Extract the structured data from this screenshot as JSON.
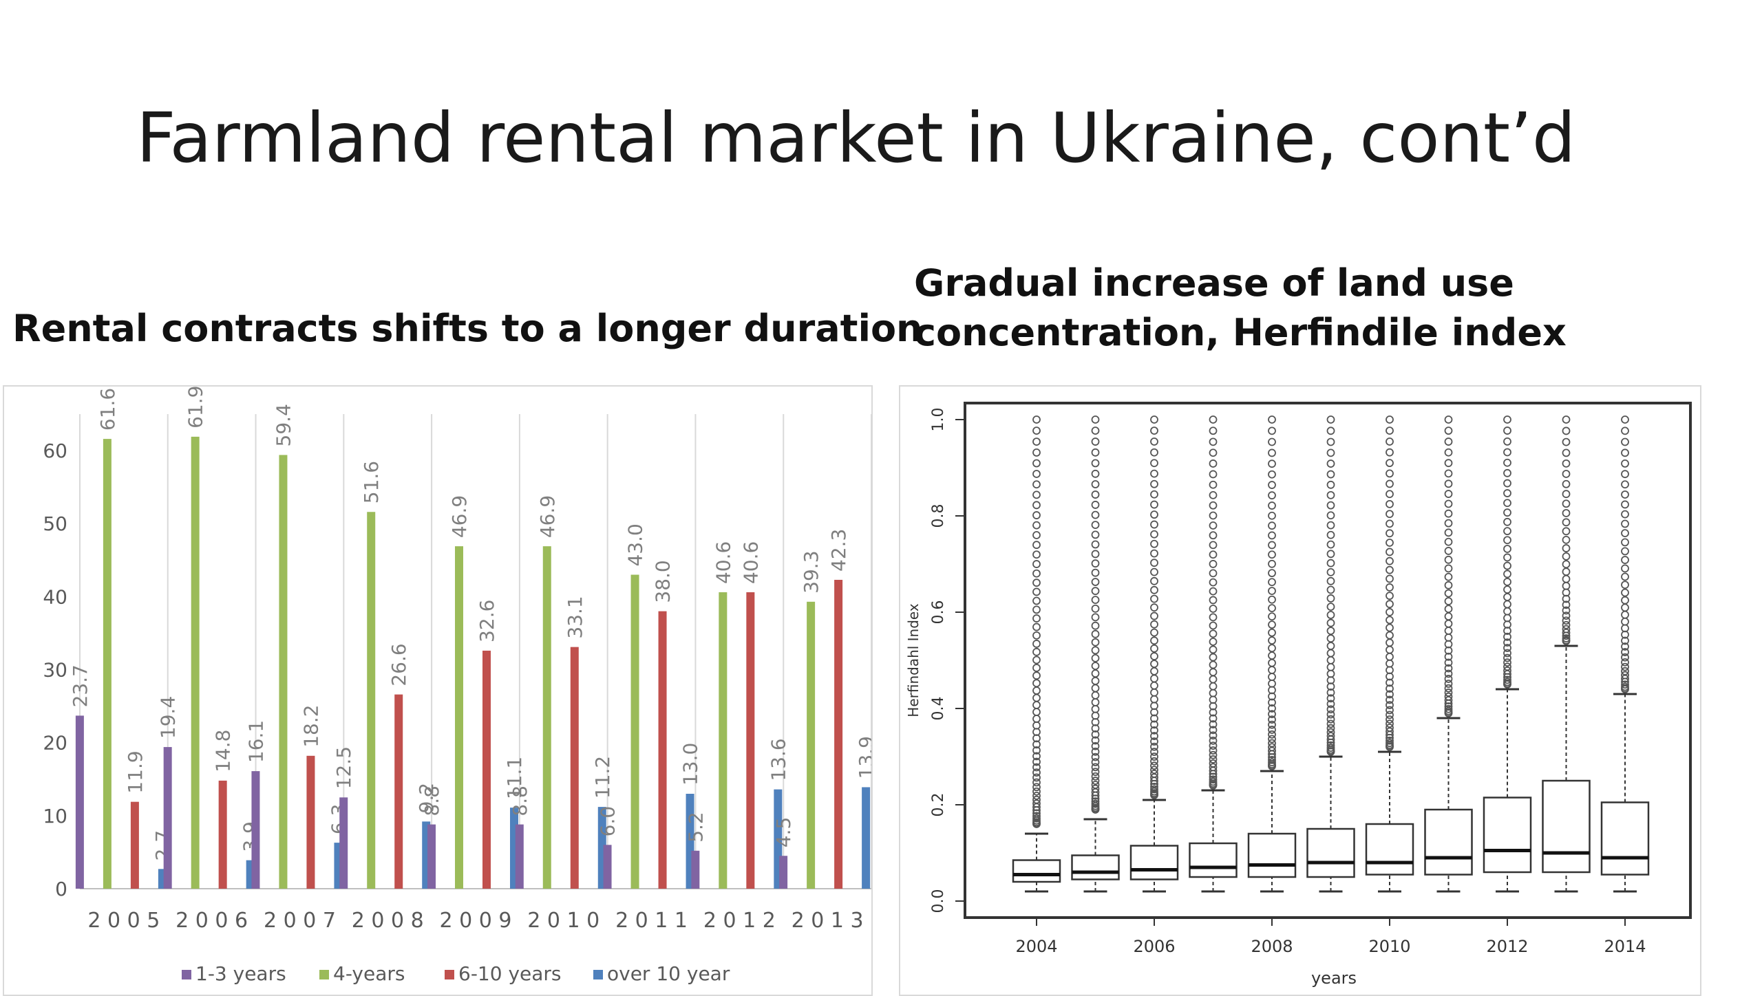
{
  "slide": {
    "title": "Farmland rental market in Ukraine, cont’d",
    "left_subtitle": "Rental contracts shifts to a longer duration",
    "right_subtitle": "Gradual increase of land use concentration, Herfindile index"
  },
  "colors": {
    "one_to_three": "#8064a2",
    "four_years": "#9bbb59",
    "six_to_ten": "#c0504d",
    "over_ten": "#4f81bd"
  },
  "chart_data": [
    {
      "type": "bar",
      "title": "",
      "xlabel": "",
      "ylabel": "",
      "ylim": [
        0,
        65
      ],
      "yticks": [
        0,
        10,
        20,
        30,
        40,
        50,
        60
      ],
      "categories": [
        "2005",
        "2006",
        "2007",
        "2008",
        "2009",
        "2010",
        "2011",
        "2012",
        "2013"
      ],
      "category_labels": [
        "2 0 0 5",
        "2 0 0 6",
        "2 0 0 7",
        "2 0 0 8",
        "2 0 0 9",
        "2 0 1 0",
        "2 0 1 1",
        "2 0 1 2",
        "2 0 1 3"
      ],
      "legend_position": "bottom",
      "grid": "vertical",
      "series": [
        {
          "name": "1-3 years",
          "color": "#8064a2",
          "values": [
            23.7,
            19.4,
            16.1,
            12.5,
            8.8,
            8.8,
            6.0,
            5.2,
            4.5
          ],
          "labels": [
            "23.7",
            "19.4",
            "16.1",
            "12.5",
            "8.8",
            "8.8",
            "6.0",
            "5.2",
            "4.5"
          ]
        },
        {
          "name": "4-years",
          "color": "#9bbb59",
          "values": [
            61.6,
            61.9,
            59.4,
            51.6,
            46.9,
            46.9,
            43.0,
            40.6,
            39.3
          ],
          "labels": [
            "61.6",
            "61.9",
            "59.4",
            "51.6",
            "46.9",
            "46.9",
            "43.0",
            "40.6",
            "39.3"
          ]
        },
        {
          "name": "6-10 years",
          "color": "#c0504d",
          "values": [
            11.9,
            14.8,
            18.2,
            26.6,
            32.6,
            33.1,
            38.0,
            40.6,
            42.3
          ],
          "labels": [
            "11.9",
            "14.8",
            "18.2",
            "26.6",
            "32.6",
            "33.1",
            "38.0",
            "40.6",
            "42.3"
          ]
        },
        {
          "name": "over 10 year",
          "color": "#4f81bd",
          "values": [
            2.7,
            3.9,
            6.3,
            9.2,
            11.1,
            11.2,
            13.0,
            13.6,
            13.9
          ],
          "labels": [
            "2.7",
            "3.9",
            "6.3",
            "9.2",
            "11.1",
            "11.2",
            "13.0",
            "13.6",
            "13.9"
          ]
        }
      ]
    },
    {
      "type": "boxplot",
      "title": "",
      "xlabel": "years",
      "ylabel": "Herfindahl Index",
      "ylim": [
        0,
        1.0
      ],
      "yticks": [
        "0.0",
        "0.2",
        "0.4",
        "0.6",
        "0.8",
        "1.0"
      ],
      "xticks": [
        "2004",
        "2006",
        "2008",
        "2010",
        "2012",
        "2014"
      ],
      "categories": [
        "2004",
        "2005",
        "2006",
        "2007",
        "2008",
        "2009",
        "2010",
        "2011",
        "2012",
        "2013",
        "2014"
      ],
      "boxes": [
        {
          "year": "2004",
          "whisker_low": 0.02,
          "q1": 0.04,
          "median": 0.055,
          "q3": 0.085,
          "whisker_high": 0.14,
          "outlier_min": 0.16
        },
        {
          "year": "2005",
          "whisker_low": 0.02,
          "q1": 0.045,
          "median": 0.06,
          "q3": 0.095,
          "whisker_high": 0.17,
          "outlier_min": 0.19
        },
        {
          "year": "2006",
          "whisker_low": 0.02,
          "q1": 0.045,
          "median": 0.065,
          "q3": 0.115,
          "whisker_high": 0.21,
          "outlier_min": 0.22
        },
        {
          "year": "2007",
          "whisker_low": 0.02,
          "q1": 0.05,
          "median": 0.07,
          "q3": 0.12,
          "whisker_high": 0.23,
          "outlier_min": 0.24
        },
        {
          "year": "2008",
          "whisker_low": 0.02,
          "q1": 0.05,
          "median": 0.075,
          "q3": 0.14,
          "whisker_high": 0.27,
          "outlier_min": 0.28
        },
        {
          "year": "2009",
          "whisker_low": 0.02,
          "q1": 0.05,
          "median": 0.08,
          "q3": 0.15,
          "whisker_high": 0.3,
          "outlier_min": 0.31
        },
        {
          "year": "2010",
          "whisker_low": 0.02,
          "q1": 0.055,
          "median": 0.08,
          "q3": 0.16,
          "whisker_high": 0.31,
          "outlier_min": 0.32
        },
        {
          "year": "2011",
          "whisker_low": 0.02,
          "q1": 0.055,
          "median": 0.09,
          "q3": 0.19,
          "whisker_high": 0.38,
          "outlier_min": 0.39
        },
        {
          "year": "2012",
          "whisker_low": 0.02,
          "q1": 0.06,
          "median": 0.105,
          "q3": 0.215,
          "whisker_high": 0.44,
          "outlier_min": 0.45
        },
        {
          "year": "2013",
          "whisker_low": 0.02,
          "q1": 0.06,
          "median": 0.1,
          "q3": 0.25,
          "whisker_high": 0.53,
          "outlier_min": 0.54
        },
        {
          "year": "2014",
          "whisker_low": 0.02,
          "q1": 0.055,
          "median": 0.09,
          "q3": 0.205,
          "whisker_high": 0.43,
          "outlier_min": 0.44
        }
      ]
    }
  ]
}
